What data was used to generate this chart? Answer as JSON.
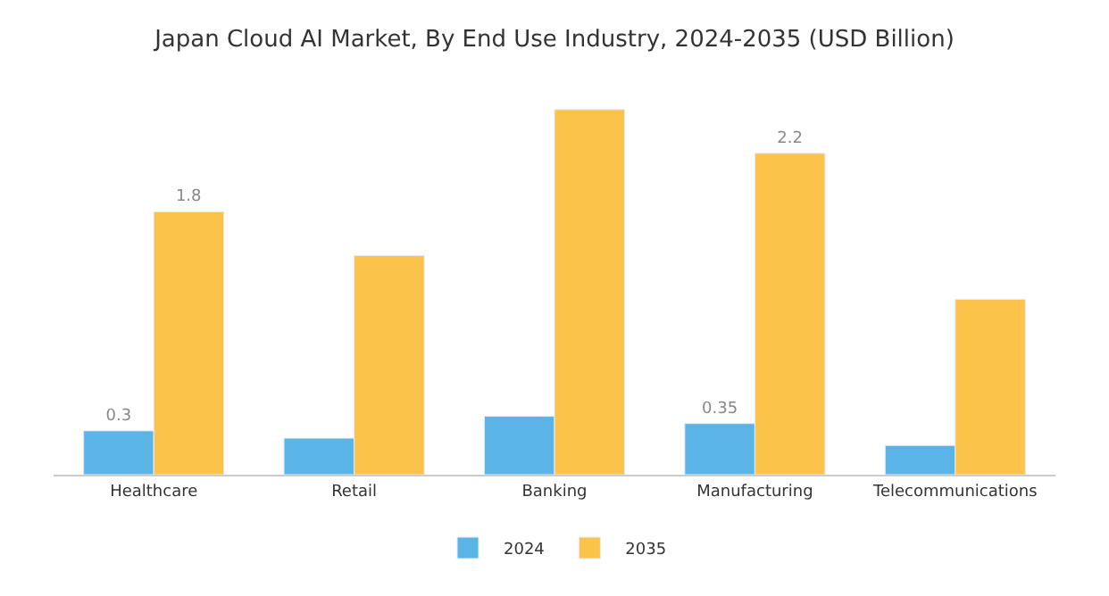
{
  "chart_data": {
    "type": "bar",
    "title": "Japan Cloud AI Market, By End Use Industry, 2024-2035 (USD Billion)",
    "categories": [
      "Healthcare",
      "Retail",
      "Banking",
      "Manufacturing",
      "Telecommunications"
    ],
    "series": [
      {
        "name": "2024",
        "color": "#5ab4e6",
        "values": [
          0.3,
          0.25,
          0.4,
          0.35,
          0.2
        ],
        "value_labels": [
          "0.3",
          null,
          null,
          "0.35",
          null
        ]
      },
      {
        "name": "2035",
        "color": "#fbc34a",
        "values": [
          1.8,
          1.5,
          2.5,
          2.2,
          1.2
        ],
        "value_labels": [
          "1.8",
          null,
          null,
          "2.2",
          null
        ]
      }
    ],
    "legend": "bottom"
  }
}
